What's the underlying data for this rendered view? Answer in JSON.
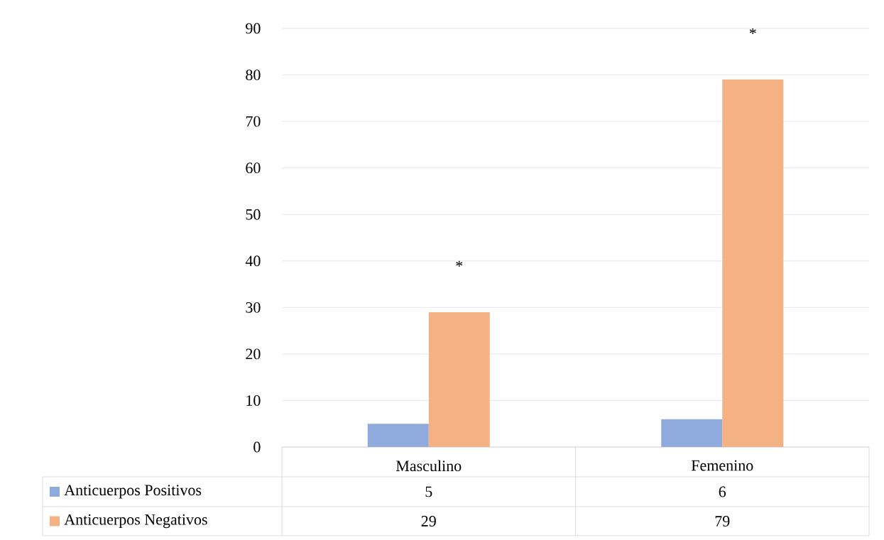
{
  "chart_data": {
    "type": "bar",
    "categories": [
      "Masculino",
      "Femenino"
    ],
    "series": [
      {
        "name": "Anticuerpos Positivos",
        "color": "#8faadc",
        "values": [
          5,
          6
        ]
      },
      {
        "name": "Anticuerpos Negativos",
        "color": "#f4b183",
        "values": [
          29,
          79
        ]
      }
    ],
    "ylim": [
      0,
      90
    ],
    "yticks": [
      0,
      10,
      20,
      30,
      40,
      50,
      60,
      70,
      80,
      90
    ],
    "grid": "y",
    "legend": "bottom",
    "data_labels": true,
    "annotations": [
      "*",
      "*"
    ]
  }
}
